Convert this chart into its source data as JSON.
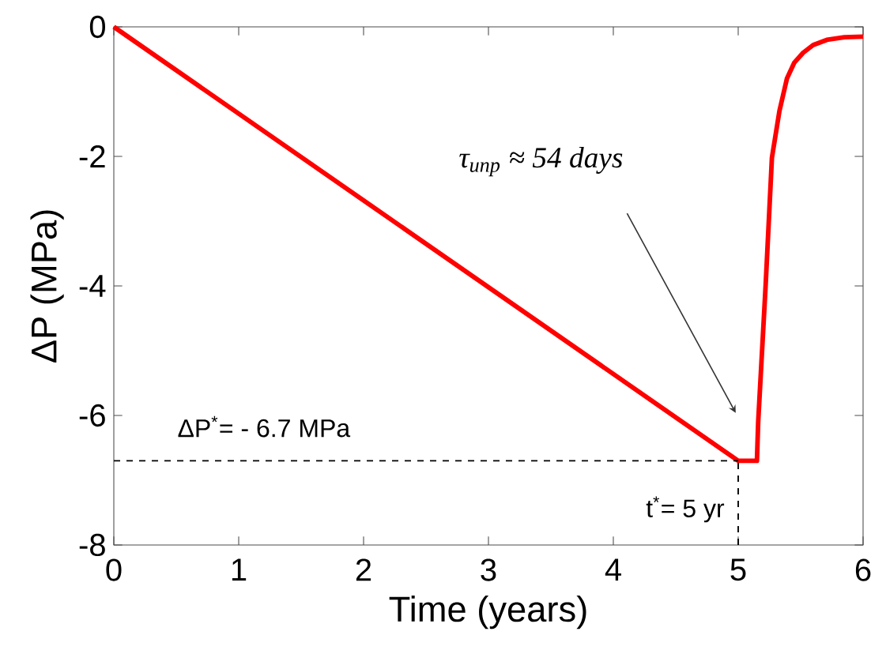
{
  "chart_data": {
    "type": "line",
    "xlabel": "Time (years)",
    "ylabel": "ΔP (MPa)",
    "xlim": [
      0,
      6
    ],
    "ylim": [
      -8,
      0
    ],
    "xticks": [
      0,
      1,
      2,
      3,
      4,
      5,
      6
    ],
    "yticks": [
      -8,
      -6,
      -4,
      -2,
      0
    ],
    "marker": "none",
    "line_style": "solid",
    "series": [
      {
        "color": "#ff0000",
        "x": [
          0,
          5,
          5.15,
          5.16,
          5.22,
          5.27,
          5.33,
          5.39,
          5.45,
          5.52,
          5.6,
          5.71,
          5.85,
          6
        ],
        "values": [
          0,
          -6.7,
          -6.7,
          -6.1,
          -3.98,
          -2.02,
          -1.3,
          -0.8,
          -0.55,
          -0.4,
          -0.28,
          -0.2,
          -0.16,
          -0.15
        ]
      }
    ],
    "ref_lines": [
      {
        "axis": "y",
        "value": -6.7,
        "label": "ΔP$^{*}$= - 6.7 MPa",
        "color": "#000000",
        "line_style": "dashed"
      },
      {
        "axis": "x",
        "value": 5,
        "label": "t$^{*}$= 5 yr",
        "color": "#000000",
        "line_style": "dashed"
      }
    ],
    "annotations": [
      "τ$_{unp}$ ≈ 54 days"
    ]
  }
}
